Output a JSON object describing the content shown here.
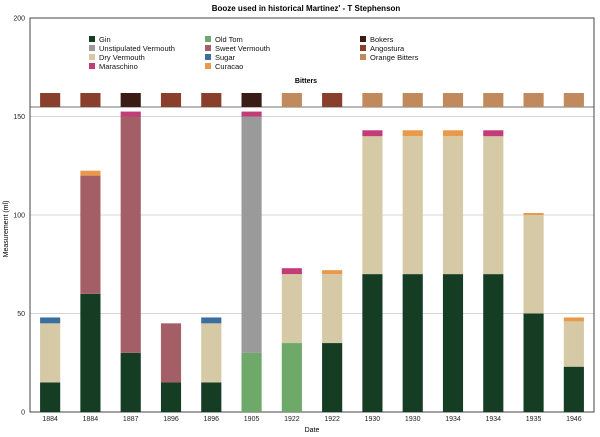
{
  "chart_data": {
    "type": "bar",
    "stacked": true,
    "title": "Booze used in historical Martinez' - T Stephenson",
    "xlabel": "Date",
    "ylabel": "Measurement (ml)",
    "ylim": [
      0,
      200
    ],
    "yticks": [
      0,
      50,
      100,
      150,
      200
    ],
    "grid": true,
    "legend_position": "top",
    "bitters_label": "Bitters",
    "categories": [
      "1884",
      "1884",
      "1887",
      "1896",
      "1896",
      "1905",
      "1922",
      "1922",
      "1930",
      "1930",
      "1934",
      "1934",
      "1935",
      "1946"
    ],
    "series": [
      {
        "name": "Gin",
        "color": "#143d24",
        "values": [
          15,
          60,
          30,
          15,
          15,
          0,
          0,
          35,
          70,
          70,
          70,
          70,
          50,
          23
        ]
      },
      {
        "name": "Old Tom",
        "color": "#6ea96a",
        "values": [
          0,
          0,
          0,
          0,
          0,
          30,
          35,
          0,
          0,
          0,
          0,
          0,
          0,
          0
        ]
      },
      {
        "name": "Unstipulated Vermouth",
        "color": "#9a9a9a",
        "values": [
          0,
          0,
          0,
          0,
          0,
          120,
          0,
          0,
          0,
          0,
          0,
          0,
          0,
          0
        ]
      },
      {
        "name": "Dry Vermouth",
        "color": "#d6c9a5",
        "values": [
          30,
          0,
          0,
          0,
          30,
          0,
          35,
          35,
          70,
          70,
          70,
          70,
          50,
          23
        ]
      },
      {
        "name": "Sweet Vermouth",
        "color": "#a45f66",
        "values": [
          0,
          60,
          120,
          30,
          0,
          0,
          0,
          0,
          0,
          0,
          0,
          0,
          0,
          0
        ]
      },
      {
        "name": "Maraschino",
        "color": "#c23c78",
        "values": [
          0,
          0,
          2.5,
          0,
          0,
          2.5,
          3,
          0,
          3,
          0,
          0,
          3,
          0,
          0
        ]
      },
      {
        "name": "Sugar",
        "color": "#3b6fa0",
        "values": [
          3,
          0,
          0,
          0,
          3,
          0,
          0,
          0,
          0,
          0,
          0,
          0,
          0,
          0
        ]
      },
      {
        "name": "Curacao",
        "color": "#e8994a",
        "values": [
          0,
          2.5,
          0,
          0,
          0,
          0,
          0,
          2,
          0,
          3,
          3,
          0,
          1,
          2
        ]
      }
    ],
    "bitters": {
      "types": [
        {
          "name": "Bokers",
          "color": "#3a1c14"
        },
        {
          "name": "Angostura",
          "color": "#8a3f2c"
        },
        {
          "name": "Orange Bitters",
          "color": "#c18a5c"
        }
      ],
      "values": [
        "Angostura",
        "Angostura",
        "Bokers",
        "Angostura",
        "Angostura",
        "Bokers",
        "Orange Bitters",
        "Angostura",
        "Orange Bitters",
        "Orange Bitters",
        "Orange Bitters",
        "Orange Bitters",
        "Orange Bitters",
        "Orange Bitters"
      ]
    },
    "legend": [
      [
        "Gin",
        "Old Tom",
        "Bokers"
      ],
      [
        "Unstipulated Vermouth",
        "Sweet Vermouth",
        "Angostura"
      ],
      [
        "Dry Vermouth",
        "Sugar",
        "Orange Bitters"
      ],
      [
        "Maraschino",
        "Curacao"
      ]
    ]
  }
}
